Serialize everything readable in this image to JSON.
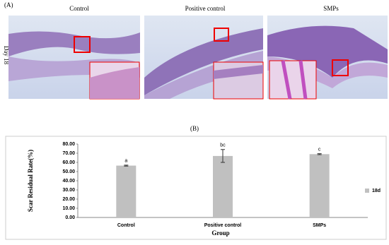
{
  "panel_a": {
    "label": "(A)",
    "row_label": "Day 18",
    "columns": [
      "Control",
      "Positive control",
      "SMPs"
    ]
  },
  "panel_b_label": "(B)",
  "chart_data": {
    "type": "bar",
    "categories": [
      "Control",
      "Positive control",
      "SMPs"
    ],
    "series": [
      {
        "name": "18d",
        "color": "#c0c0c0",
        "values": [
          56.5,
          67,
          69
        ],
        "errors": [
          0.5,
          7,
          0.5
        ],
        "annotations": [
          "a",
          "bc",
          "c"
        ]
      }
    ],
    "ylim": [
      0,
      80
    ],
    "yticks": [
      {
        "value": 0,
        "label": "0.00"
      },
      {
        "value": 10,
        "label": "10.00"
      },
      {
        "value": 20,
        "label": "20.00"
      },
      {
        "value": 30,
        "label": "30.00"
      },
      {
        "value": 40,
        "label": "40.00"
      },
      {
        "value": 50,
        "label": "50.00"
      },
      {
        "value": 60,
        "label": "60.00"
      },
      {
        "value": 70,
        "label": "70.00"
      },
      {
        "value": 80,
        "label": "80.00"
      }
    ],
    "ylabel": "Scar Residual Rate(%)",
    "xlabel": "Group",
    "legend": "right"
  }
}
